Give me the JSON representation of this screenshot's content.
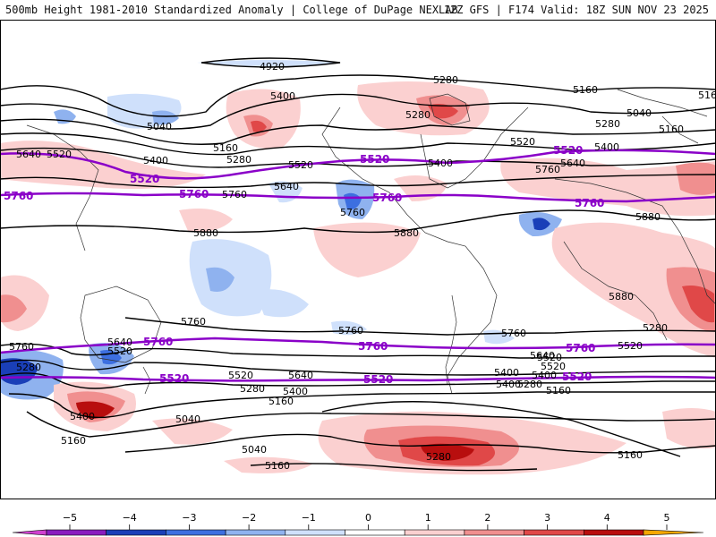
{
  "header": {
    "title": "500mb Height 1981-2010 Standardized Anomaly | College of DuPage NEXLAB",
    "run_info": "12Z GFS | F174 Valid: 18Z SUN NOV 23 2025"
  },
  "map": {
    "height_labels": [
      "4920",
      "5280",
      "5160",
      "5400",
      "5040",
      "5280",
      "5160",
      "5280",
      "5400",
      "5520",
      "5640",
      "5520",
      "5400",
      "5280",
      "5160",
      "5040",
      "5160",
      "5400",
      "5520",
      "5640",
      "5760",
      "5760",
      "5640",
      "5760",
      "5880",
      "5880",
      "5880",
      "5880",
      "5760",
      "5760",
      "5760",
      "5640",
      "5520",
      "5400",
      "5280",
      "5160",
      "5040",
      "5040",
      "5160",
      "5280",
      "5400",
      "5280",
      "5520",
      "5640",
      "5520",
      "5400",
      "5280",
      "5160",
      "5400",
      "5520",
      "5640",
      "5760",
      "5160",
      "5280",
      "5520",
      "5400",
      "5160"
    ],
    "purple_labels": [
      "5520",
      "5760",
      "5520",
      "5760",
      "5520",
      "5760",
      "5760",
      "5760",
      "5520",
      "5760",
      "5520",
      "5760",
      "5520"
    ]
  },
  "legend": {
    "ticks": [
      "−5",
      "−4",
      "−3",
      "−2",
      "−1",
      "0",
      "1",
      "2",
      "3",
      "4",
      "5"
    ],
    "colors": [
      "#d040d0",
      "#8a1cbf",
      "#1a3fb8",
      "#3d6fe0",
      "#8fb2ef",
      "#cfe0fb",
      "#ffffff",
      "#fbd0d0",
      "#f08f8f",
      "#e04848",
      "#b80e0e",
      "#f5a800"
    ]
  }
}
